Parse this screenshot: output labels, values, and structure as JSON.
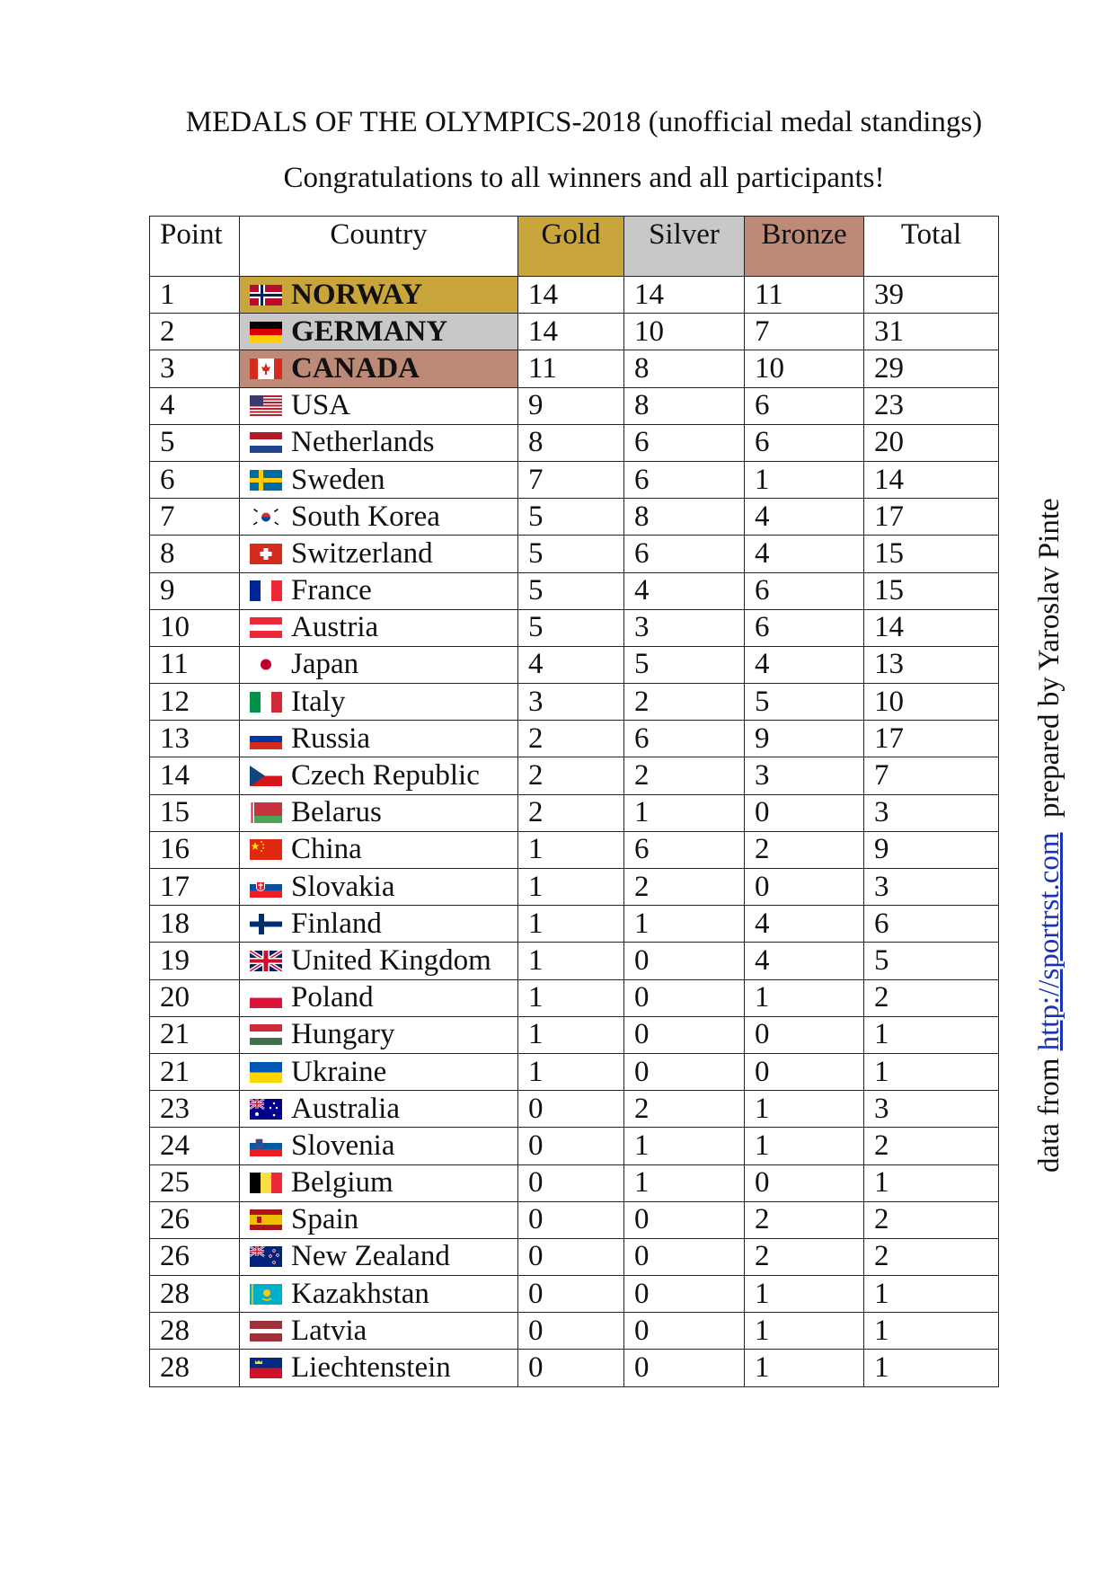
{
  "title": "MEDALS OF THE OLYMPICS-2018 (unofficial medal standings)",
  "subtitle": "Congratulations to all winners and all participants!",
  "colors": {
    "gold": "#c9a63c",
    "silver": "#c8c8c8",
    "bronze": "#bd8a78",
    "link": "#1a33b8"
  },
  "table": {
    "headers": {
      "point": "Point",
      "country": "Country",
      "gold": "Gold",
      "silver": "Silver",
      "bronze": "Bronze",
      "total": "Total"
    },
    "rows": [
      {
        "point": "1",
        "country": "NORWAY",
        "flag": "norway-flag-icon",
        "gold": "14",
        "silver": "14",
        "bronze": "11",
        "total": "39"
      },
      {
        "point": "2",
        "country": "GERMANY",
        "flag": "germany-flag-icon",
        "gold": "14",
        "silver": "10",
        "bronze": "7",
        "total": "31"
      },
      {
        "point": "3",
        "country": "CANADA",
        "flag": "canada-flag-icon",
        "gold": "11",
        "silver": "8",
        "bronze": "10",
        "total": "29"
      },
      {
        "point": "4",
        "country": "USA",
        "flag": "usa-flag-icon",
        "gold": "9",
        "silver": "8",
        "bronze": "6",
        "total": "23"
      },
      {
        "point": "5",
        "country": "Netherlands",
        "flag": "netherlands-flag-icon",
        "gold": "8",
        "silver": "6",
        "bronze": "6",
        "total": "20"
      },
      {
        "point": "6",
        "country": "Sweden",
        "flag": "sweden-flag-icon",
        "gold": "7",
        "silver": "6",
        "bronze": "1",
        "total": "14"
      },
      {
        "point": "7",
        "country": "South Korea",
        "flag": "south-korea-flag-icon",
        "gold": "5",
        "silver": "8",
        "bronze": "4",
        "total": "17"
      },
      {
        "point": "8",
        "country": "Switzerland",
        "flag": "switzerland-flag-icon",
        "gold": "5",
        "silver": "6",
        "bronze": "4",
        "total": "15"
      },
      {
        "point": "9",
        "country": "France",
        "flag": "france-flag-icon",
        "gold": "5",
        "silver": "4",
        "bronze": "6",
        "total": "15"
      },
      {
        "point": "10",
        "country": "Austria",
        "flag": "austria-flag-icon",
        "gold": "5",
        "silver": "3",
        "bronze": "6",
        "total": "14"
      },
      {
        "point": "11",
        "country": "Japan",
        "flag": "japan-flag-icon",
        "gold": "4",
        "silver": "5",
        "bronze": "4",
        "total": "13"
      },
      {
        "point": "12",
        "country": "Italy",
        "flag": "italy-flag-icon",
        "gold": "3",
        "silver": "2",
        "bronze": "5",
        "total": "10"
      },
      {
        "point": "13",
        "country": "Russia",
        "flag": "russia-flag-icon",
        "gold": "2",
        "silver": "6",
        "bronze": "9",
        "total": "17"
      },
      {
        "point": "14",
        "country": "Czech Republic",
        "flag": "czech-republic-flag-icon",
        "gold": "2",
        "silver": "2",
        "bronze": "3",
        "total": "7"
      },
      {
        "point": "15",
        "country": "Belarus",
        "flag": "belarus-flag-icon",
        "gold": "2",
        "silver": "1",
        "bronze": "0",
        "total": "3"
      },
      {
        "point": "16",
        "country": "China",
        "flag": "china-flag-icon",
        "gold": "1",
        "silver": "6",
        "bronze": "2",
        "total": "9"
      },
      {
        "point": "17",
        "country": "Slovakia",
        "flag": "slovakia-flag-icon",
        "gold": "1",
        "silver": "2",
        "bronze": "0",
        "total": "3"
      },
      {
        "point": "18",
        "country": "Finland",
        "flag": "finland-flag-icon",
        "gold": "1",
        "silver": "1",
        "bronze": "4",
        "total": "6"
      },
      {
        "point": "19",
        "country": "United Kingdom",
        "flag": "united-kingdom-flag-icon",
        "gold": "1",
        "silver": "0",
        "bronze": "4",
        "total": "5"
      },
      {
        "point": "20",
        "country": "Poland",
        "flag": "poland-flag-icon",
        "gold": "1",
        "silver": "0",
        "bronze": "1",
        "total": "2"
      },
      {
        "point": "21",
        "country": "Hungary",
        "flag": "hungary-flag-icon",
        "gold": "1",
        "silver": "0",
        "bronze": "0",
        "total": "1"
      },
      {
        "point": "21",
        "country": "Ukraine",
        "flag": "ukraine-flag-icon",
        "gold": "1",
        "silver": "0",
        "bronze": "0",
        "total": "1"
      },
      {
        "point": "23",
        "country": "Australia",
        "flag": "australia-flag-icon",
        "gold": "0",
        "silver": "2",
        "bronze": "1",
        "total": "3"
      },
      {
        "point": "24",
        "country": "Slovenia",
        "flag": "slovenia-flag-icon",
        "gold": "0",
        "silver": "1",
        "bronze": "1",
        "total": "2"
      },
      {
        "point": "25",
        "country": "Belgium",
        "flag": "belgium-flag-icon",
        "gold": "0",
        "silver": "1",
        "bronze": "0",
        "total": "1"
      },
      {
        "point": "26",
        "country": "Spain",
        "flag": "spain-flag-icon",
        "gold": "0",
        "silver": "0",
        "bronze": "2",
        "total": "2"
      },
      {
        "point": "26",
        "country": "New Zealand",
        "flag": "new-zealand-flag-icon",
        "gold": "0",
        "silver": "0",
        "bronze": "2",
        "total": "2"
      },
      {
        "point": "28",
        "country": "Kazakhstan",
        "flag": "kazakhstan-flag-icon",
        "gold": "0",
        "silver": "0",
        "bronze": "1",
        "total": "1"
      },
      {
        "point": "28",
        "country": "Latvia",
        "flag": "latvia-flag-icon",
        "gold": "0",
        "silver": "0",
        "bronze": "1",
        "total": "1"
      },
      {
        "point": "28",
        "country": "Liechtenstein",
        "flag": "liechtenstein-flag-icon",
        "gold": "0",
        "silver": "0",
        "bronze": "1",
        "total": "1"
      }
    ]
  },
  "credit": {
    "prefix": "data from",
    "link_text": "http://sportrst.com",
    "suffix": "prepared by Yaroslav Pinte"
  }
}
